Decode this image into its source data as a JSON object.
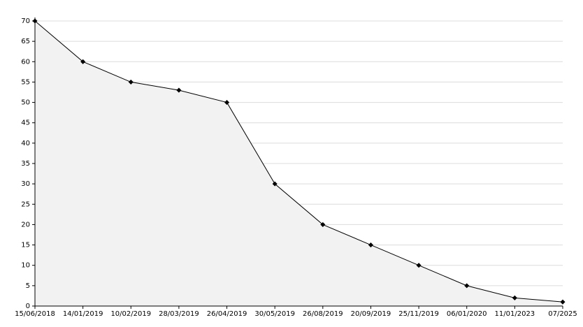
{
  "chart_data": {
    "type": "area",
    "categories": [
      "15/06/2018",
      "14/01/2019",
      "10/02/2019",
      "28/03/2019",
      "26/04/2019",
      "30/05/2019",
      "26/08/2019",
      "20/09/2019",
      "25/11/2019",
      "06/01/2020",
      "11/01/2023",
      "07/2025"
    ],
    "values": [
      70,
      60,
      55,
      53,
      50,
      30,
      20,
      15,
      10,
      5,
      2,
      1
    ],
    "color": "#000000",
    "fill": "#f2f2f2",
    "ylim": [
      0,
      70
    ],
    "yticks": [
      0,
      5,
      10,
      15,
      20,
      25,
      30,
      35,
      40,
      45,
      50,
      55,
      60,
      65,
      70
    ],
    "grid": true
  }
}
